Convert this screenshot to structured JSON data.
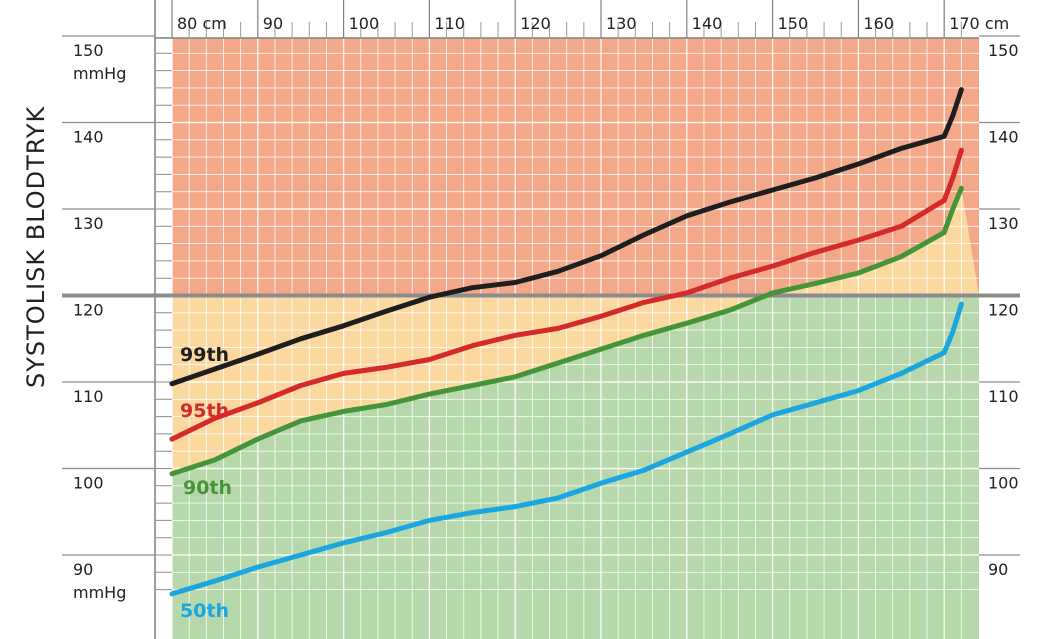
{
  "chart_data": {
    "type": "line",
    "ylabel": "SYSTOLISK BLODTRYK",
    "xlim": [
      78,
      172
    ],
    "ylim": [
      85,
      155
    ],
    "x_ticks": [
      {
        "value": 80,
        "label": "80 cm"
      },
      {
        "value": 90,
        "label": "90"
      },
      {
        "value": 100,
        "label": "100"
      },
      {
        "value": 110,
        "label": "110"
      },
      {
        "value": 120,
        "label": "120"
      },
      {
        "value": 130,
        "label": "130"
      },
      {
        "value": 140,
        "label": "140"
      },
      {
        "value": 150,
        "label": "150"
      },
      {
        "value": 160,
        "label": "160"
      },
      {
        "value": 170,
        "label": "170 cm"
      }
    ],
    "y_ticks_left": [
      {
        "value": 150,
        "label": "150",
        "unit": "mmHg"
      },
      {
        "value": 140,
        "label": "140",
        "unit": ""
      },
      {
        "value": 130,
        "label": "130",
        "unit": ""
      },
      {
        "value": 120,
        "label": "120",
        "unit": ""
      },
      {
        "value": 110,
        "label": "110",
        "unit": ""
      },
      {
        "value": 100,
        "label": "100",
        "unit": ""
      },
      {
        "value": 90,
        "label": "90",
        "unit": "mmHg"
      }
    ],
    "y_ticks_right": [
      "150",
      "140",
      "130",
      "120",
      "110",
      "100",
      "90"
    ],
    "reference_line": 120,
    "grid": true,
    "x": [
      80,
      85,
      90,
      95,
      100,
      105,
      110,
      115,
      120,
      125,
      130,
      135,
      140,
      145,
      150,
      155,
      160,
      165,
      170,
      171,
      172
    ],
    "series": [
      {
        "name": "99th",
        "color": "#1e1e1e",
        "label_color": "#1e1e1e",
        "values": [
          109.8,
          111.5,
          113.2,
          115.0,
          116.5,
          118.2,
          119.8,
          120.9,
          121.5,
          122.8,
          124.6,
          127.0,
          129.2,
          130.8,
          132.2,
          133.6,
          135.2,
          137.0,
          138.4,
          140.8,
          143.8
        ]
      },
      {
        "name": "95th",
        "color": "#d42a2a",
        "label_color": "#d42a2a",
        "values": [
          103.4,
          105.8,
          107.6,
          109.6,
          111.0,
          111.7,
          112.6,
          114.2,
          115.4,
          116.2,
          117.6,
          119.2,
          120.3,
          122.0,
          123.4,
          125.0,
          126.4,
          128.0,
          131.0,
          133.6,
          136.8
        ]
      },
      {
        "name": "90th",
        "color": "#45943a",
        "label_color": "#45943a",
        "values": [
          99.4,
          101.0,
          103.4,
          105.5,
          106.6,
          107.4,
          108.6,
          109.6,
          110.6,
          112.2,
          113.8,
          115.4,
          116.8,
          118.3,
          120.3,
          121.4,
          122.6,
          124.5,
          127.3,
          130.0,
          132.4
        ]
      },
      {
        "name": "50th",
        "color": "#1aa6e0",
        "label_color": "#1aa6e0",
        "values": [
          85.5,
          87.0,
          88.6,
          90.0,
          91.4,
          92.6,
          94.0,
          94.9,
          95.6,
          96.6,
          98.3,
          99.8,
          101.9,
          104.0,
          106.2,
          107.6,
          109.0,
          111.0,
          113.4,
          115.8,
          119.0
        ]
      }
    ],
    "zones": [
      {
        "name": "high",
        "color": "#f4a88a"
      },
      {
        "name": "elevated",
        "color": "#fad8a0"
      },
      {
        "name": "normal",
        "color": "#b7d8aa"
      }
    ]
  }
}
